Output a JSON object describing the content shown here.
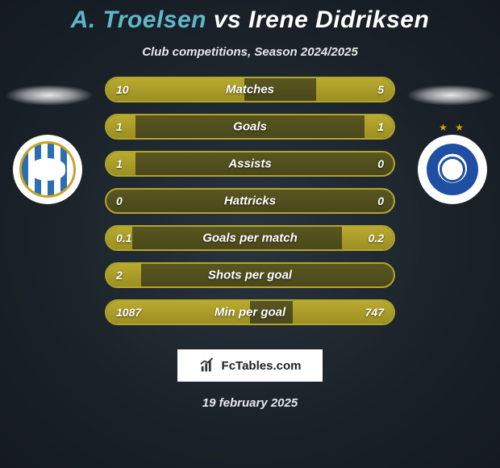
{
  "title": {
    "player1": "A. Troelsen",
    "vs": "vs",
    "player2": "Irene Didriksen",
    "p1_color": "#5fb8c9",
    "vs_color": "#ffffff",
    "p2_color": "#ffffff"
  },
  "subtitle": "Club competitions, Season 2024/2025",
  "colors": {
    "bar_border": "#b2a52c",
    "bar_fill": "#b9ab2f",
    "bar_bg": "#5a5620",
    "text": "#ffffff"
  },
  "rows": [
    {
      "label": "Matches",
      "left": "10",
      "right": "5",
      "left_pct": 48,
      "right_pct": 27
    },
    {
      "label": "Goals",
      "left": "1",
      "right": "1",
      "left_pct": 10,
      "right_pct": 10
    },
    {
      "label": "Assists",
      "left": "1",
      "right": "0",
      "left_pct": 10,
      "right_pct": 0
    },
    {
      "label": "Hattricks",
      "left": "0",
      "right": "0",
      "left_pct": 0,
      "right_pct": 0
    },
    {
      "label": "Goals per match",
      "left": "0.1",
      "right": "0.2",
      "left_pct": 9,
      "right_pct": 18
    },
    {
      "label": "Shots per goal",
      "left": "2",
      "right": "",
      "left_pct": 12,
      "right_pct": 0
    },
    {
      "label": "Min per goal",
      "left": "1087",
      "right": "747",
      "left_pct": 50,
      "right_pct": 35
    }
  ],
  "brand": "FcTables.com",
  "date": "19 february 2025"
}
